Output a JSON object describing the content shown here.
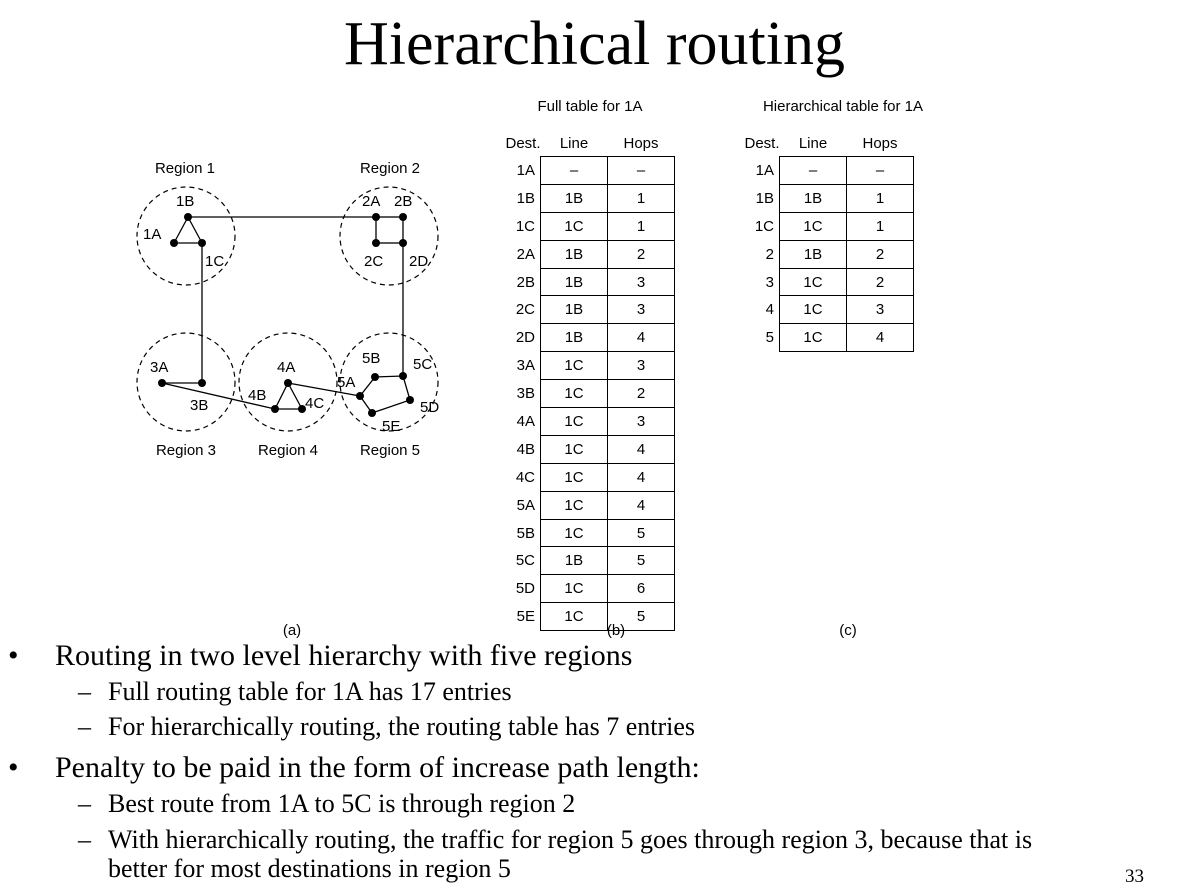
{
  "title": "Hierarchical routing",
  "diagram": {
    "regions": [
      "Region 1",
      "Region 2",
      "Region 3",
      "Region 4",
      "Region 5"
    ],
    "nodes": [
      "1A",
      "1B",
      "1C",
      "2A",
      "2B",
      "2C",
      "2D",
      "3A",
      "3B",
      "4A",
      "4B",
      "4C",
      "5A",
      "5B",
      "5C",
      "5D",
      "5E"
    ],
    "caption": "(a)"
  },
  "full_table": {
    "title": "Full table for 1A",
    "headers": [
      "Dest.",
      "Line",
      "Hops"
    ],
    "rows": [
      [
        "1A",
        "–",
        "–"
      ],
      [
        "1B",
        "1B",
        "1"
      ],
      [
        "1C",
        "1C",
        "1"
      ],
      [
        "2A",
        "1B",
        "2"
      ],
      [
        "2B",
        "1B",
        "3"
      ],
      [
        "2C",
        "1B",
        "3"
      ],
      [
        "2D",
        "1B",
        "4"
      ],
      [
        "3A",
        "1C",
        "3"
      ],
      [
        "3B",
        "1C",
        "2"
      ],
      [
        "4A",
        "1C",
        "3"
      ],
      [
        "4B",
        "1C",
        "4"
      ],
      [
        "4C",
        "1C",
        "4"
      ],
      [
        "5A",
        "1C",
        "4"
      ],
      [
        "5B",
        "1C",
        "5"
      ],
      [
        "5C",
        "1B",
        "5"
      ],
      [
        "5D",
        "1C",
        "6"
      ],
      [
        "5E",
        "1C",
        "5"
      ]
    ],
    "caption": "(b)"
  },
  "hier_table": {
    "title": "Hierarchical table for 1A",
    "headers": [
      "Dest.",
      "Line",
      "Hops"
    ],
    "rows": [
      [
        "1A",
        "–",
        "–"
      ],
      [
        "1B",
        "1B",
        "1"
      ],
      [
        "1C",
        "1C",
        "1"
      ],
      [
        "2",
        "1B",
        "2"
      ],
      [
        "3",
        "1C",
        "2"
      ],
      [
        "4",
        "1C",
        "3"
      ],
      [
        "5",
        "1C",
        "4"
      ]
    ],
    "caption": "(c)"
  },
  "bullets": [
    {
      "text": "Routing in two level hierarchy with five regions",
      "sub": [
        "Full routing table for 1A has 17 entries",
        "For hierarchically routing, the routing table has 7 entries"
      ]
    },
    {
      "text": "Penalty to be paid in the form of increase path length:",
      "sub": [
        "Best route from 1A to 5C is through region 2",
        "With hierarchically routing, the traffic for region 5 goes through region 3, because that is",
        "better for most destinations in region 5"
      ]
    }
  ],
  "bullet_symbol": "•",
  "dash_symbol": "–",
  "page_number": "33"
}
